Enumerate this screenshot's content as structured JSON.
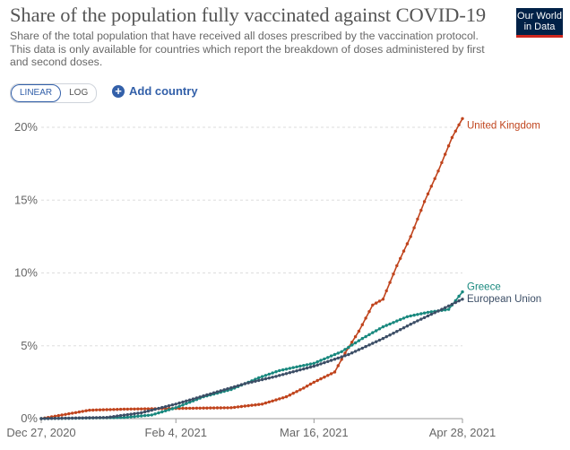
{
  "header": {
    "title": "Share of the population fully vaccinated against COVID-19",
    "subtitle": "Share of the total population that have received all doses prescribed by the vaccination protocol. This data is only available for countries which report the breakdown of doses administered by first and second doses.",
    "logo_line1": "Our World",
    "logo_line2": "in Data"
  },
  "controls": {
    "linear_label": "LINEAR",
    "log_label": "LOG",
    "add_country_label": "Add country",
    "plus_icon": "plus-circle-icon"
  },
  "chart_data": {
    "type": "line",
    "xlim": [
      "2020-12-27",
      "2021-04-28"
    ],
    "ylim": [
      0,
      20
    ],
    "yticks": [
      0,
      5,
      10,
      15,
      20
    ],
    "ytick_labels": [
      "0%",
      "5%",
      "10%",
      "15%",
      "20%"
    ],
    "xticks": [
      "2020-12-27",
      "2021-02-04",
      "2021-03-16",
      "2021-04-28"
    ],
    "xtick_labels": [
      "Dec 27, 2020",
      "Feb 4, 2021",
      "Mar 16, 2021",
      "Apr 28, 2021"
    ],
    "grid": "horizontal",
    "legend": "end-of-line labels",
    "series": [
      {
        "name": "United Kingdom",
        "color": "#c0441d",
        "points": [
          [
            "2020-12-27",
            0
          ],
          [
            "2021-01-10",
            0.58
          ],
          [
            "2021-01-20",
            0.65
          ],
          [
            "2021-02-04",
            0.7
          ],
          [
            "2021-02-20",
            0.75
          ],
          [
            "2021-03-01",
            1.0
          ],
          [
            "2021-03-08",
            1.5
          ],
          [
            "2021-03-13",
            2.1
          ],
          [
            "2021-03-16",
            2.5
          ],
          [
            "2021-03-22",
            3.2
          ],
          [
            "2021-03-25",
            4.5
          ],
          [
            "2021-03-29",
            6.0
          ],
          [
            "2021-04-02",
            7.8
          ],
          [
            "2021-04-05",
            8.2
          ],
          [
            "2021-04-09",
            10.5
          ],
          [
            "2021-04-13",
            12.5
          ],
          [
            "2021-04-17",
            14.9
          ],
          [
            "2021-04-21",
            17.0
          ],
          [
            "2021-04-25",
            19.3
          ],
          [
            "2021-04-28",
            20.6
          ]
        ]
      },
      {
        "name": "Greece",
        "color": "#18887e",
        "points": [
          [
            "2020-12-27",
            0
          ],
          [
            "2021-01-20",
            0.08
          ],
          [
            "2021-01-28",
            0.25
          ],
          [
            "2021-02-04",
            0.75
          ],
          [
            "2021-02-12",
            1.5
          ],
          [
            "2021-02-20",
            2.0
          ],
          [
            "2021-02-28",
            2.8
          ],
          [
            "2021-03-06",
            3.3
          ],
          [
            "2021-03-16",
            3.8
          ],
          [
            "2021-03-24",
            4.6
          ],
          [
            "2021-03-30",
            5.5
          ],
          [
            "2021-04-05",
            6.3
          ],
          [
            "2021-04-12",
            7.0
          ],
          [
            "2021-04-18",
            7.3
          ],
          [
            "2021-04-24",
            7.5
          ],
          [
            "2021-04-28",
            8.7
          ]
        ]
      },
      {
        "name": "European Union",
        "color": "#3c4e66",
        "points": [
          [
            "2020-12-27",
            0
          ],
          [
            "2021-01-15",
            0.08
          ],
          [
            "2021-01-25",
            0.4
          ],
          [
            "2021-02-04",
            1.0
          ],
          [
            "2021-02-14",
            1.7
          ],
          [
            "2021-02-24",
            2.4
          ],
          [
            "2021-03-05",
            2.9
          ],
          [
            "2021-03-16",
            3.6
          ],
          [
            "2021-03-26",
            4.4
          ],
          [
            "2021-04-05",
            5.5
          ],
          [
            "2021-04-14",
            6.6
          ],
          [
            "2021-04-22",
            7.5
          ],
          [
            "2021-04-28",
            8.2
          ]
        ]
      }
    ]
  }
}
